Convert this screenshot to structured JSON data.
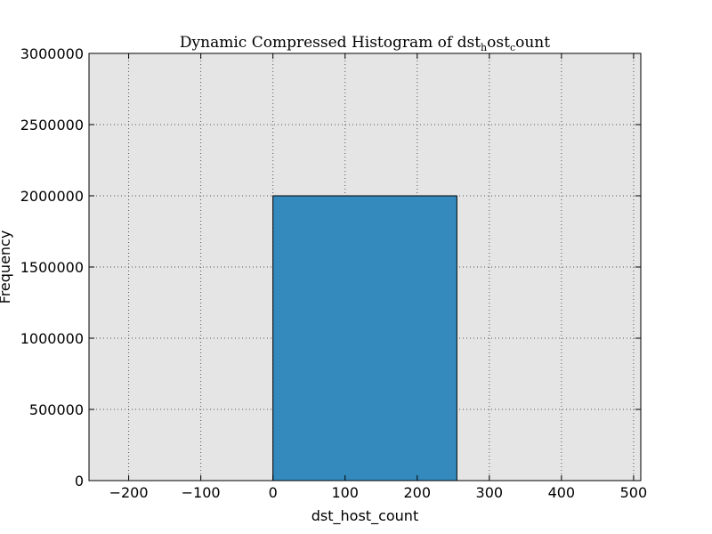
{
  "chart_data": {
    "type": "bar",
    "title": {
      "parts": [
        {
          "text": "Dynamic Compressed Histogram of dst",
          "sub": false
        },
        {
          "text": "h",
          "sub": true
        },
        {
          "text": "ost",
          "sub": false
        },
        {
          "text": "c",
          "sub": true
        },
        {
          "text": "ount",
          "sub": false
        }
      ]
    },
    "xlabel": "dst_host_count",
    "ylabel": "Frequency",
    "xlim": [
      -255,
      510
    ],
    "ylim": [
      0,
      3000000
    ],
    "x_ticks": [
      -200,
      -100,
      0,
      100,
      200,
      300,
      400,
      500
    ],
    "x_tick_labels": [
      "−200",
      "−100",
      "0",
      "100",
      "200",
      "300",
      "400",
      "500"
    ],
    "y_ticks": [
      0,
      500000,
      1000000,
      1500000,
      2000000,
      2500000,
      3000000
    ],
    "y_tick_labels": [
      "0",
      "500000",
      "1000000",
      "1500000",
      "2000000",
      "2500000",
      "3000000"
    ],
    "bins": [
      {
        "x_start": 0,
        "x_end": 255,
        "value": 2000000
      }
    ],
    "grid": true,
    "colors": {
      "bar_fill": "#348abd",
      "bar_edge": "#000000",
      "plot_background": "#e5e5e5",
      "grid": "#555555"
    }
  }
}
